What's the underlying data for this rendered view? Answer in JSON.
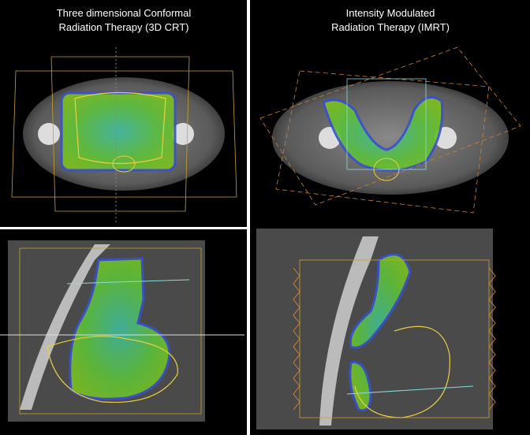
{
  "panels": [
    {
      "title_line1": "Three dimensional Conformal",
      "title_line2": "Radiation Therapy (3D CRT)"
    },
    {
      "title_line1": "Intensity Modulated",
      "title_line2": "Radiation Therapy (IMRT)"
    }
  ]
}
